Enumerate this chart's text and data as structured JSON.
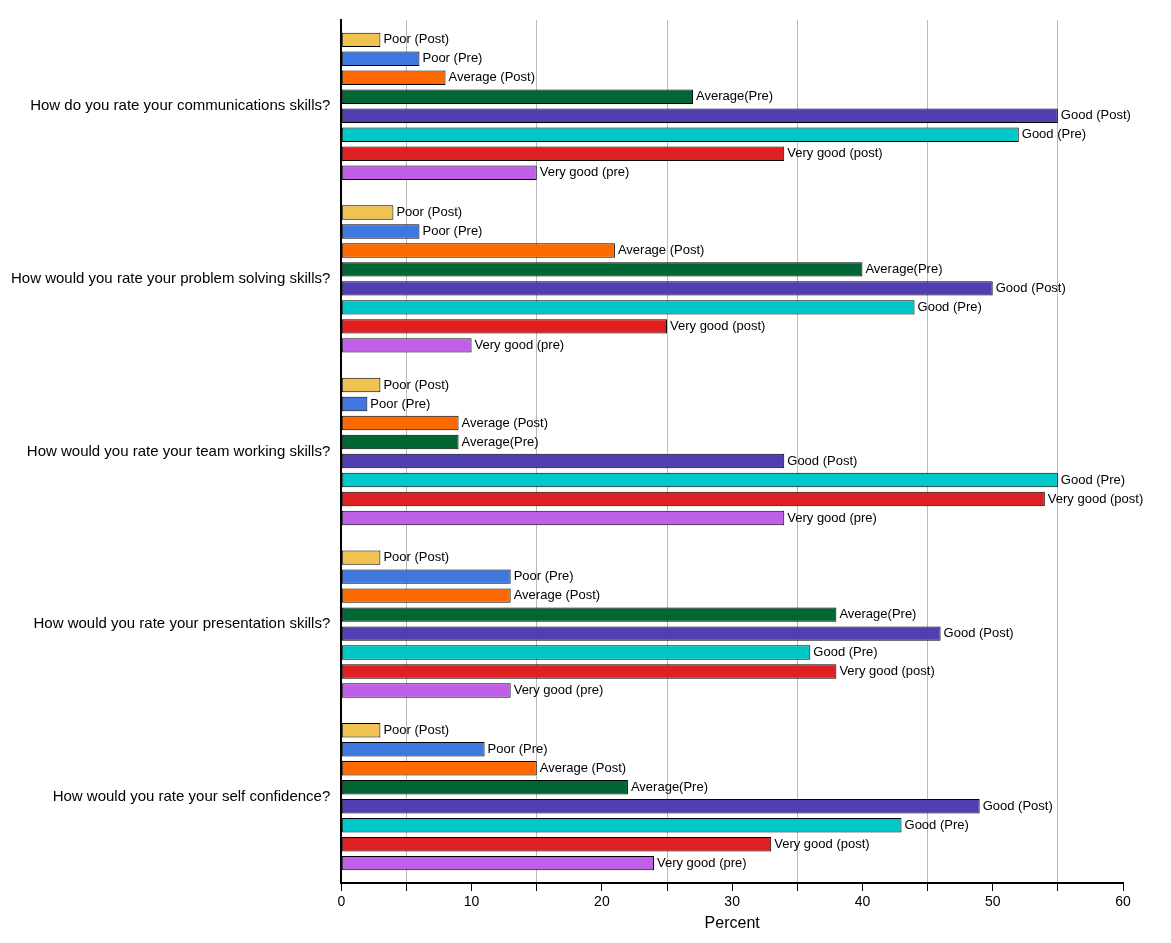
{
  "chart_data": {
    "type": "bar",
    "orientation": "horizontal",
    "xlabel": "Percent",
    "categories": [
      "How do you rate your communications skills?",
      "How would you rate your problem solving skills?",
      "How would you rate your team working skills?",
      "How would you rate your presentation skills?",
      "How would you rate your self confidence?"
    ],
    "series": [
      {
        "name": "Poor (Post)",
        "color": "#f0c350",
        "values": [
          3,
          4,
          3,
          3,
          3
        ]
      },
      {
        "name": "Poor (Pre)",
        "color": "#3f77e0",
        "values": [
          6,
          6,
          2,
          13,
          11
        ]
      },
      {
        "name": "Average (Post)",
        "color": "#ff6a00",
        "values": [
          8,
          21,
          9,
          13,
          15
        ]
      },
      {
        "name": "Average(Pre)",
        "color": "#006633",
        "values": [
          27,
          40,
          9,
          38,
          22
        ]
      },
      {
        "name": "Good (Post)",
        "color": "#4f3fb0",
        "values": [
          55,
          50,
          34,
          46,
          49
        ]
      },
      {
        "name": "Good (Pre)",
        "color": "#00c8c8",
        "values": [
          52,
          44,
          55,
          36,
          43
        ]
      },
      {
        "name": "Very good (post)",
        "color": "#e02020",
        "values": [
          34,
          25,
          54,
          38,
          33
        ]
      },
      {
        "name": "Very good (pre)",
        "color": "#c060e8",
        "values": [
          15,
          10,
          34,
          13,
          24
        ]
      }
    ],
    "xlim": [
      0,
      60
    ],
    "xticks": [
      0,
      {
        "value": 5,
        "label": null
      },
      10,
      {
        "value": 15,
        "label": null
      },
      20,
      {
        "value": 25,
        "label": null
      },
      30,
      {
        "value": 35,
        "label": null
      },
      40,
      {
        "value": 45,
        "label": null
      },
      50,
      {
        "value": 55,
        "label": null
      },
      60
    ],
    "grid": true,
    "legend": false
  }
}
